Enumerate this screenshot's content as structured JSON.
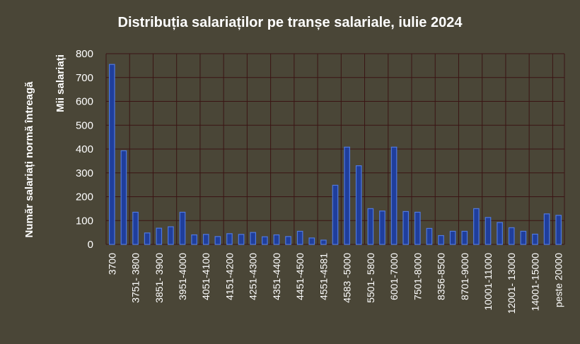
{
  "chart_data": {
    "type": "bar",
    "title": "Distribuția salariaților pe tranșe salariale, iulie 2024",
    "ylabel_outer": "Număr salariați normă întreagă",
    "ylabel_inner": "Mii salariați",
    "xlabel": "",
    "ylim": [
      0,
      800
    ],
    "yticks": [
      0,
      100,
      200,
      300,
      400,
      500,
      600,
      700,
      800
    ],
    "grid": true,
    "legend": "none",
    "colors": {
      "background": "#4a4637",
      "grid": "#3a1414",
      "bar_fill": "#1f3e9c",
      "bar_edge": "#4f78e0",
      "text": "#ffffff"
    },
    "tick_labels": [
      "3700",
      "3751- 3800",
      "3851- 3900",
      "3951-4000",
      "4051-4100",
      "4151-4200",
      "4251-4300",
      "4351-4400",
      "4451-4500",
      "4551-4581",
      "4583 -5000",
      "5501- 5800",
      "6001-7000",
      "7501-8000",
      "8356-8500",
      "8701-9000",
      "10001-11000",
      "12001- 13000",
      "14001-15000",
      "peste 20000"
    ],
    "values": [
      755,
      393,
      135,
      48,
      68,
      74,
      135,
      40,
      42,
      33,
      45,
      42,
      50,
      32,
      40,
      33,
      55,
      27,
      18,
      248,
      408,
      330,
      150,
      140,
      408,
      138,
      135,
      67,
      37,
      55,
      55,
      150,
      113,
      92,
      70,
      55,
      43,
      128,
      122
    ]
  }
}
